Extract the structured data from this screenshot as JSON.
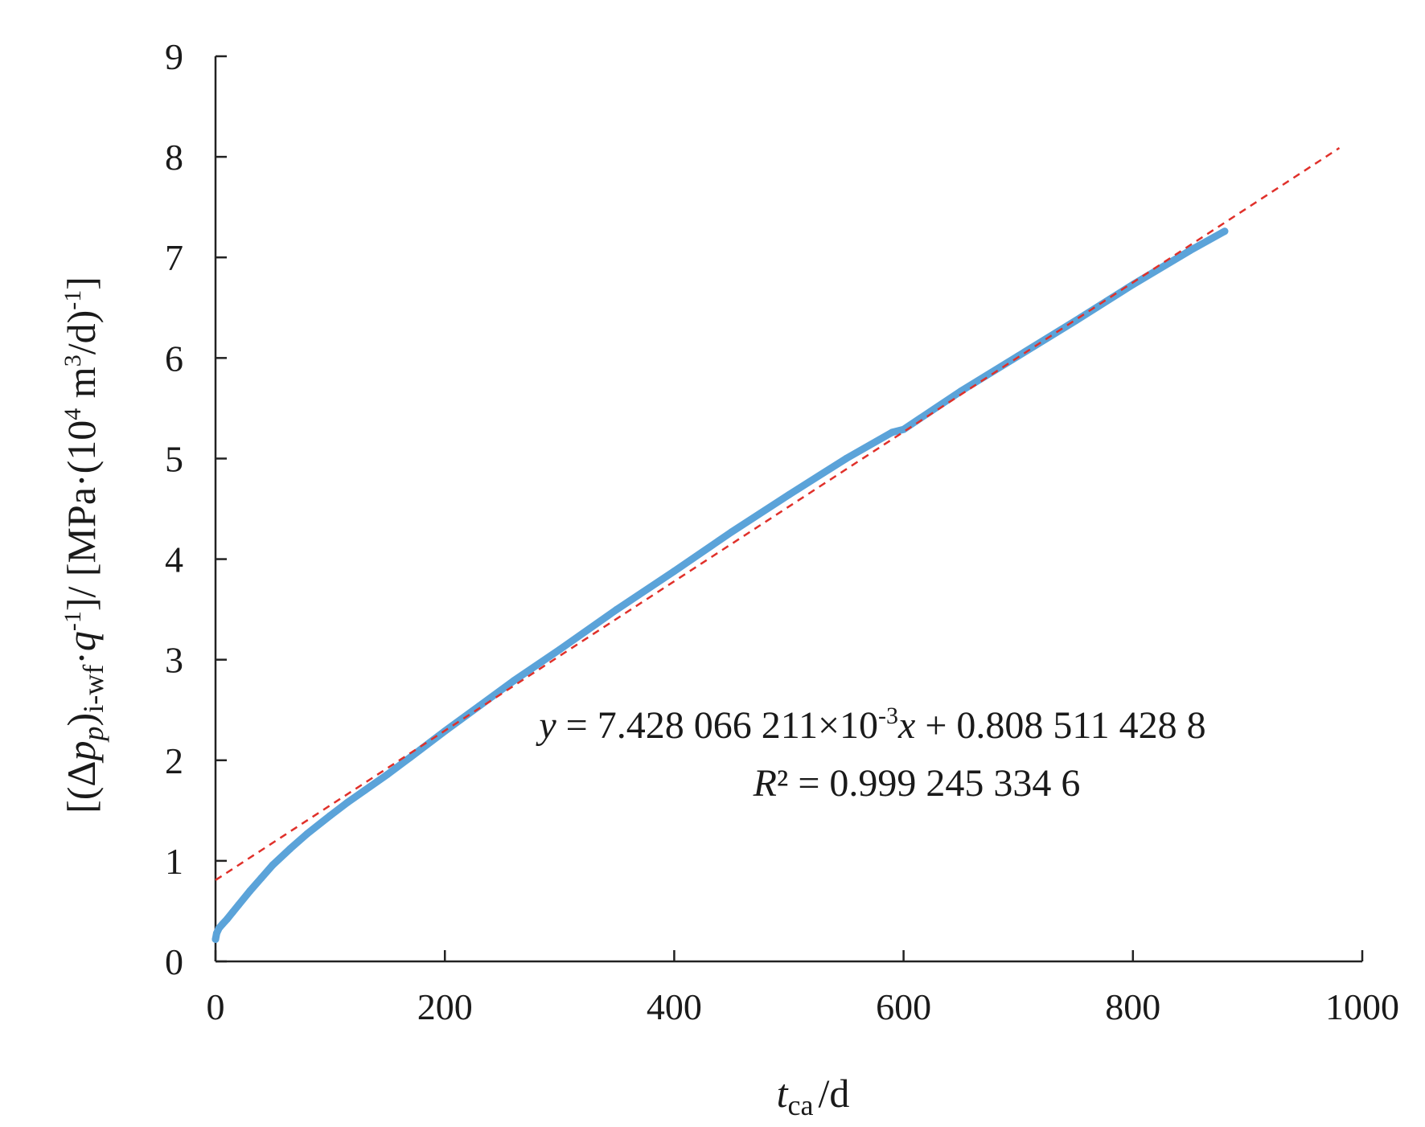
{
  "chart_data": {
    "type": "scatter",
    "title": "",
    "xlabel": {
      "var": "t",
      "sub": "ca",
      "unit": "/d"
    },
    "ylabel": {
      "open": "[(Δ",
      "var_p": "p",
      "sub_p": "p",
      "close_paren": ")",
      "sub_iwf": "i-wf",
      "dot_q": "·",
      "var_q": "q",
      "sup_neg1": "-1",
      "mid": "]/ [MPa·(10",
      "sup4": "4",
      "m": " m",
      "sup3": "3",
      "tail": "/d)",
      "sup_neg1b": "-1",
      "end": "]"
    },
    "xlim": [
      0,
      1000
    ],
    "ylim": [
      0,
      9
    ],
    "xticks": [
      "0",
      "200",
      "400",
      "600",
      "800",
      "1000"
    ],
    "yticks": [
      "0",
      "1",
      "2",
      "3",
      "4",
      "5",
      "6",
      "7",
      "8",
      "9"
    ],
    "grid": false,
    "series": [
      {
        "kind": "data",
        "color": "#5ba3d9",
        "x": [
          0,
          1,
          3,
          6,
          10,
          15,
          20,
          30,
          40,
          50,
          65,
          80,
          100,
          115,
          130,
          150,
          170,
          200,
          230,
          260,
          300,
          350,
          400,
          450,
          500,
          550,
          590,
          600,
          650,
          700,
          750,
          800,
          850,
          880
        ],
        "y": [
          0.22,
          0.28,
          0.33,
          0.37,
          0.42,
          0.49,
          0.56,
          0.7,
          0.83,
          0.96,
          1.12,
          1.27,
          1.45,
          1.58,
          1.7,
          1.86,
          2.03,
          2.29,
          2.54,
          2.79,
          3.1,
          3.5,
          3.88,
          4.27,
          4.64,
          5.0,
          5.26,
          5.29,
          5.67,
          6.02,
          6.37,
          6.73,
          7.07,
          7.26
        ]
      },
      {
        "kind": "fit",
        "color": "#e0302a",
        "slope": 0.007428066211,
        "intercept": 0.8085114288,
        "x": [
          0,
          980
        ]
      }
    ],
    "annotations": {
      "eq": {
        "y": "y",
        "eq_pre": " = 7.428 066 211",
        "times": "×",
        "ten": "10",
        "exp": "-3",
        "x": "x",
        "eq_post": " + 0.808 511 428 8"
      },
      "r2": {
        "R": "R",
        "rest": "² = 0.999 245 334 6"
      }
    }
  }
}
